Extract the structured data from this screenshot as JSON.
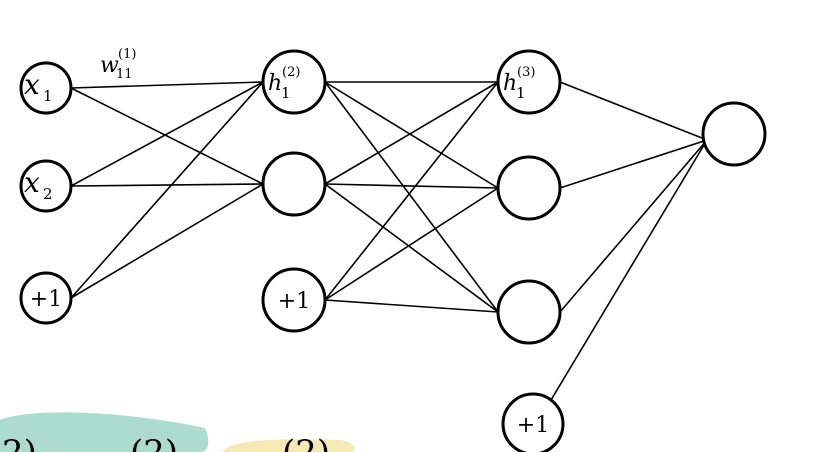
{
  "colors": {
    "stroke": "#000000",
    "node_fill": "#ffffff",
    "highlight_teal": "#9fd6c6",
    "highlight_yellow": "#f3e6a6"
  },
  "layers": [
    {
      "nodes": [
        {
          "label": "x",
          "sub": "1"
        },
        {
          "label": "x",
          "sub": "2"
        },
        {
          "label": "+1"
        }
      ]
    },
    {
      "nodes": [
        {
          "label": "h",
          "sub": "1",
          "sup": "(2)"
        },
        {
          "label": ""
        },
        {
          "label": "+1"
        }
      ]
    },
    {
      "nodes": [
        {
          "label": "h",
          "sub": "1",
          "sup": "(3)"
        },
        {
          "label": ""
        },
        {
          "label": ""
        },
        {
          "label": "+1"
        }
      ]
    },
    {
      "nodes": [
        {
          "label": ""
        }
      ]
    }
  ],
  "weight_label": {
    "label": "w",
    "sub": "11",
    "sup": "(1)"
  },
  "bottom_fragments": {
    "left": "2)",
    "middle": "(2)",
    "right": "(2)"
  }
}
